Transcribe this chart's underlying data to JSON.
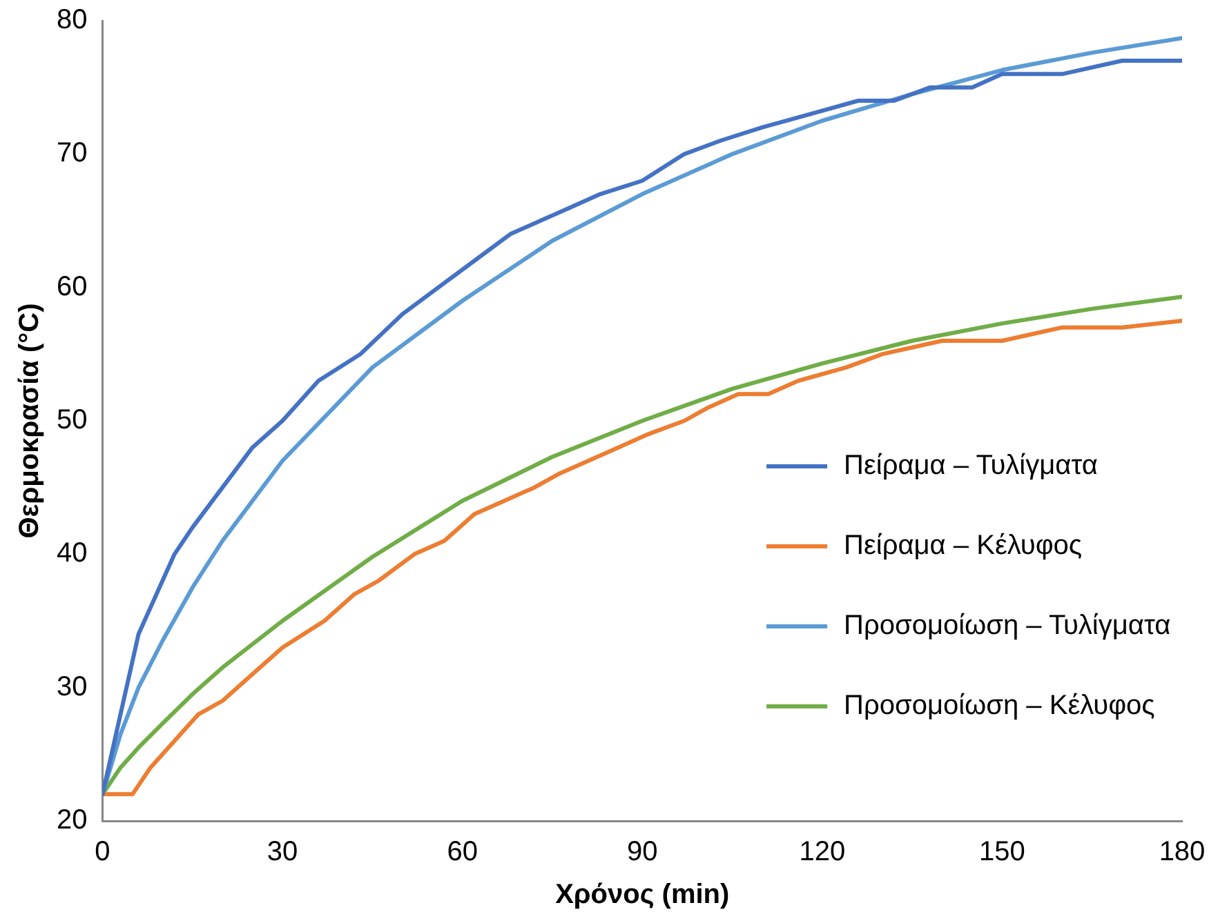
{
  "chart_data": {
    "type": "line",
    "xlabel": "Χρόνος (min)",
    "ylabel": "Θερμοκρασία (°C)",
    "xlim": [
      0,
      180
    ],
    "xticks": [
      0,
      30,
      60,
      90,
      120,
      150,
      180
    ],
    "ylim": [
      20,
      80
    ],
    "yticks": [
      20,
      30,
      40,
      50,
      60,
      70,
      80
    ],
    "grid": false,
    "legend": "right",
    "marker": "none",
    "line_style": "solid",
    "series": [
      {
        "name": "Πείραμα – Τυλίγματα",
        "color": "#4472c4",
        "x": [
          0,
          6,
          9,
          12,
          15,
          20,
          25,
          30,
          36,
          43,
          50,
          56,
          62,
          68,
          73,
          78,
          83,
          90,
          97,
          103,
          110,
          118,
          126,
          132,
          138,
          145,
          150,
          160,
          170,
          180
        ],
        "values": [
          22,
          34,
          37,
          40,
          42,
          45,
          48,
          50,
          53,
          55,
          58,
          60,
          62,
          64,
          65,
          66,
          67,
          68,
          70,
          71,
          72,
          73,
          74,
          74,
          75,
          75,
          76,
          76,
          77,
          77
        ]
      },
      {
        "name": "Πείραμα – Κέλυφος",
        "color": "#ed7d31",
        "x": [
          0,
          5,
          8,
          12,
          16,
          20,
          25,
          30,
          37,
          42,
          46,
          52,
          57,
          62,
          67,
          72,
          76,
          81,
          86,
          91,
          97,
          101,
          106,
          111,
          116,
          124,
          130,
          140,
          150,
          160,
          170,
          180
        ],
        "values": [
          22,
          22,
          24,
          26,
          28,
          29,
          31,
          33,
          35,
          37,
          38,
          40,
          41,
          43,
          44,
          45,
          46,
          47,
          48,
          49,
          50,
          51,
          52,
          52,
          53,
          54,
          55,
          56,
          56,
          57,
          57,
          57.5
        ]
      },
      {
        "name": "Προσομοίωση – Τυλίγματα",
        "color": "#5b9bd5",
        "x": [
          0,
          3,
          6,
          10,
          15,
          20,
          30,
          45,
          60,
          75,
          90,
          105,
          120,
          135,
          150,
          165,
          180
        ],
        "values": [
          22,
          26.5,
          30,
          33.5,
          37.5,
          41,
          47,
          54,
          59,
          63.5,
          67,
          70,
          72.5,
          74.5,
          76.3,
          77.6,
          78.7
        ]
      },
      {
        "name": "Προσομοίωση – Κέλυφος",
        "color": "#70ad47",
        "x": [
          0,
          3,
          6,
          10,
          15,
          20,
          30,
          45,
          60,
          75,
          90,
          105,
          120,
          135,
          150,
          165,
          180
        ],
        "values": [
          22,
          24,
          25.5,
          27.3,
          29.5,
          31.5,
          35,
          39.8,
          44,
          47.3,
          50,
          52.4,
          54.3,
          56,
          57.3,
          58.4,
          59.3
        ]
      }
    ]
  }
}
